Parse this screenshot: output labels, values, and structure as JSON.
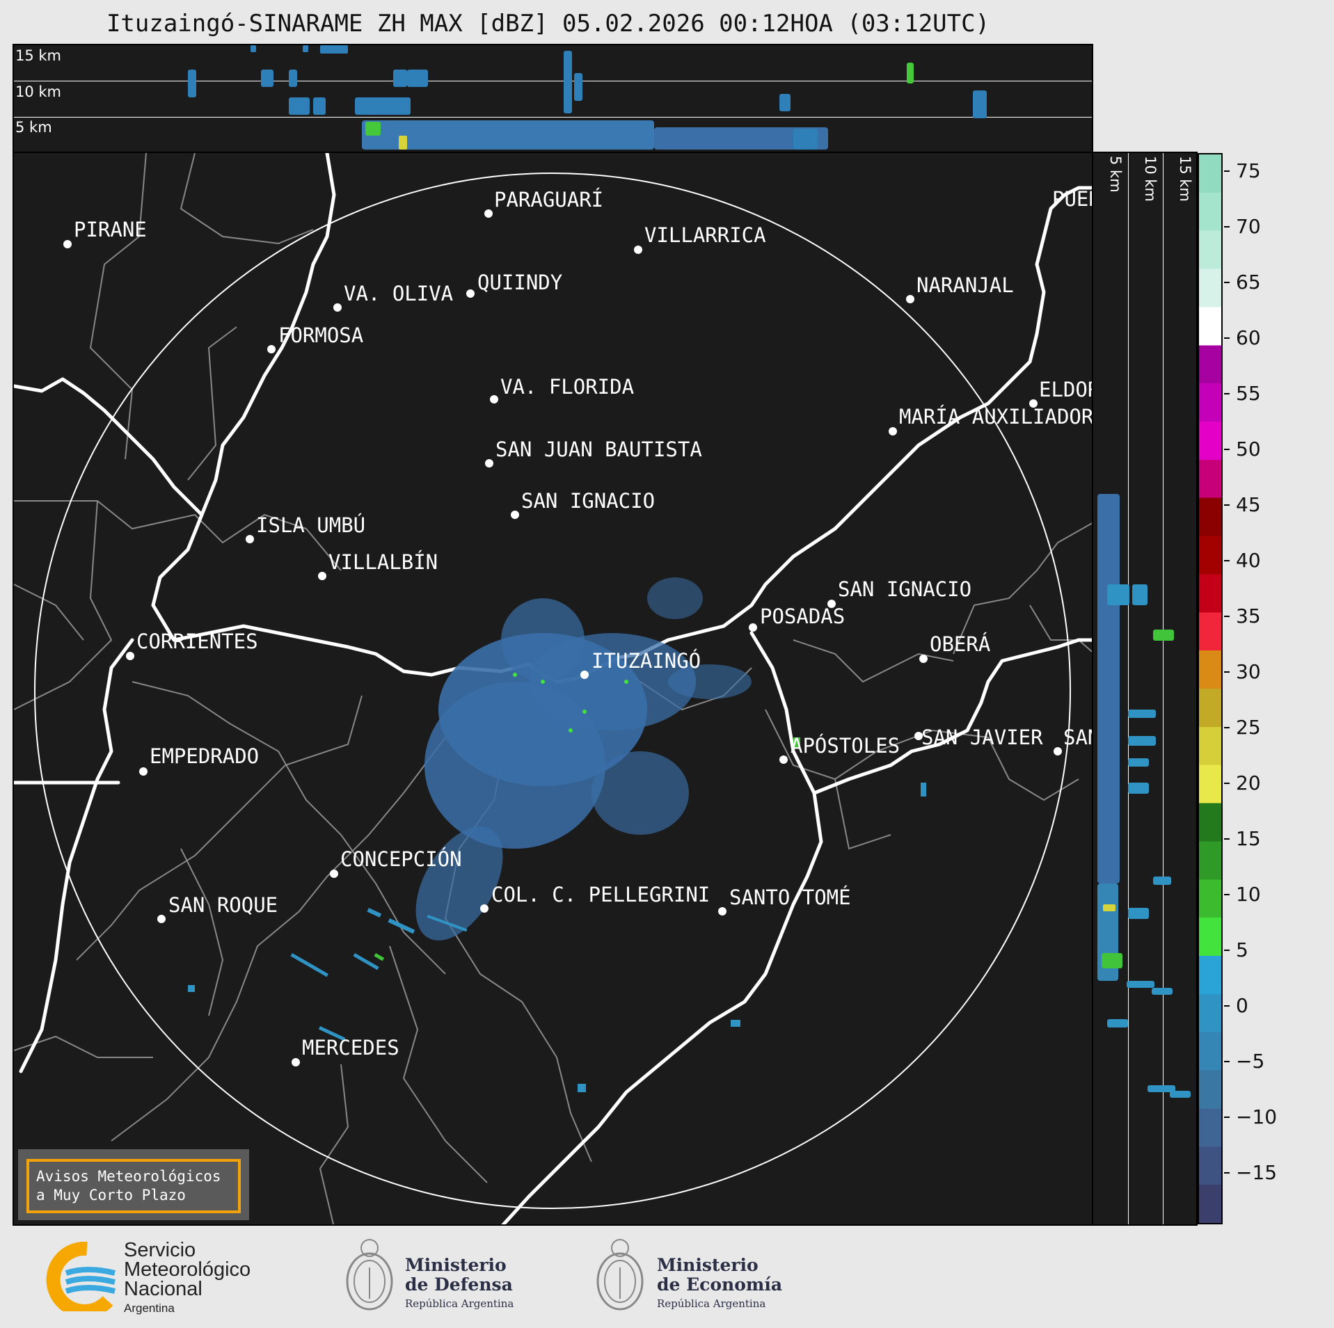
{
  "title": "Ituzaingó-SINARAME ZH MAX [dBZ] 05.02.2026 00:12HOA (03:12UTC)",
  "top_panel": {
    "altitude_labels": [
      "15 km",
      "10 km",
      "5 km"
    ]
  },
  "side_panel": {
    "altitude_labels": [
      "5 km",
      "10 km",
      "15 km"
    ]
  },
  "colorbar": {
    "unit": "dBZ",
    "ticks": [
      "75",
      "70",
      "65",
      "60",
      "55",
      "50",
      "45",
      "40",
      "35",
      "30",
      "25",
      "20",
      "15",
      "10",
      "5",
      "0",
      "−5",
      "−10",
      "−15"
    ],
    "range": [
      -19.5,
      76.5
    ],
    "colors": [
      "#3b3f6b",
      "#3e5382",
      "#3f6594",
      "#3b77a3",
      "#3585b5",
      "#2f93c4",
      "#2aa4d6",
      "#41e33c",
      "#3cbb2f",
      "#2f9a27",
      "#237a1d",
      "#e8e84a",
      "#d6cf3a",
      "#c2a926",
      "#d98b16",
      "#f2263b",
      "#c30018",
      "#a30000",
      "#8b0000",
      "#c7007a",
      "#e500c8",
      "#c400b8",
      "#a600a0",
      "#ffffff",
      "#d7f2e9",
      "#bdebd9",
      "#a5e4cc",
      "#91dcc0"
    ]
  },
  "map": {
    "center_label": "ITUZAINGÓ",
    "cities": [
      {
        "name": "PIRANE"
      },
      {
        "name": "PARAGUARÍ"
      },
      {
        "name": "VILLARRICA"
      },
      {
        "name": "VA. OLIVA"
      },
      {
        "name": "QUIINDY"
      },
      {
        "name": "NARANJAL"
      },
      {
        "name": "FORMOSA"
      },
      {
        "name": "VA. FLORIDA"
      },
      {
        "name": "ELDOR"
      },
      {
        "name": "MARÍA AUXILIADOR"
      },
      {
        "name": "SAN JUAN BAUTISTA"
      },
      {
        "name": "SAN IGNACIO"
      },
      {
        "name": "ISLA UMBÚ"
      },
      {
        "name": "VILLALBÍN"
      },
      {
        "name": "SAN IGNACIO"
      },
      {
        "name": "POSADAS"
      },
      {
        "name": "CORRIENTES"
      },
      {
        "name": "OBERÁ"
      },
      {
        "name": "ITUZAINGÓ"
      },
      {
        "name": "EMPEDRADO"
      },
      {
        "name": "APÓSTOLES"
      },
      {
        "name": "SAN JAVIER"
      },
      {
        "name": "SAN"
      },
      {
        "name": "CONCEPCIÓN"
      },
      {
        "name": "COL. C. PELLEGRINI"
      },
      {
        "name": "SANTO TOMÉ"
      },
      {
        "name": "SAN ROQUE"
      },
      {
        "name": "MERCEDES"
      },
      {
        "name": "PUER"
      }
    ]
  },
  "warning_box": {
    "line1": "Avisos Meteorológicos",
    "line2": "a Muy Corto Plazo"
  },
  "footer": {
    "smn": {
      "line1": "Servicio",
      "line2": "Meteorológico",
      "line3": "Nacional",
      "line4": "Argentina"
    },
    "defensa": {
      "line1": "Ministerio",
      "line2": "de Defensa",
      "line3": "República Argentina"
    },
    "economia": {
      "line1": "Ministerio",
      "line2": "de Economía",
      "line3": "República Argentina"
    }
  }
}
